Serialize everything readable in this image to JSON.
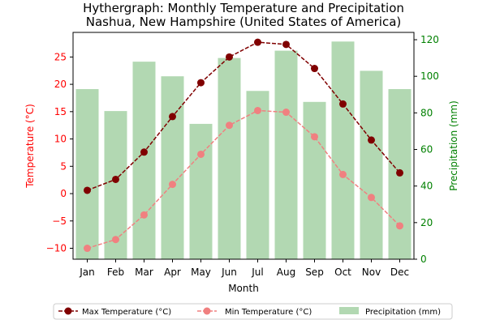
{
  "chart_data": {
    "type": "bar+line",
    "title_line1": "Hythergraph: Monthly Temperature and Precipitation",
    "title_line2": "Nashua, New Hampshire (United States of America)",
    "xlabel": "Month",
    "ylabel_left": "Temperature (°C)",
    "ylabel_right": "Precipitation (mm)",
    "categories": [
      "Jan",
      "Feb",
      "Mar",
      "Apr",
      "May",
      "Jun",
      "Jul",
      "Aug",
      "Sep",
      "Oct",
      "Nov",
      "Dec"
    ],
    "temp_ylim": [
      -12,
      29.5
    ],
    "temp_ticks": [
      -10,
      -5,
      0,
      5,
      10,
      15,
      20,
      25
    ],
    "precip_ylim": [
      0,
      124
    ],
    "precip_ticks": [
      0,
      20,
      40,
      60,
      80,
      100,
      120
    ],
    "legend_position": "bottom-center",
    "series": [
      {
        "name": "Max Temperature (°C)",
        "kind": "line",
        "axis": "left",
        "color": "#800000",
        "values": [
          0.6,
          2.6,
          7.6,
          14.1,
          20.3,
          25.0,
          27.7,
          27.3,
          22.9,
          16.4,
          9.8,
          3.8
        ]
      },
      {
        "name": "Min Temperature (°C)",
        "kind": "line",
        "axis": "left",
        "color": "#f08080",
        "values": [
          -10.0,
          -8.4,
          -3.9,
          1.7,
          7.2,
          12.5,
          15.2,
          14.9,
          10.4,
          3.5,
          -0.7,
          -5.9
        ]
      },
      {
        "name": "Precipitation (mm)",
        "kind": "bar",
        "axis": "right",
        "color": "#b2d8b2",
        "values": [
          93,
          81,
          108,
          100,
          74,
          110,
          92,
          114,
          86,
          119,
          103,
          93
        ]
      }
    ],
    "left_axis_color": "#ff0000",
    "right_axis_color": "#008000"
  }
}
